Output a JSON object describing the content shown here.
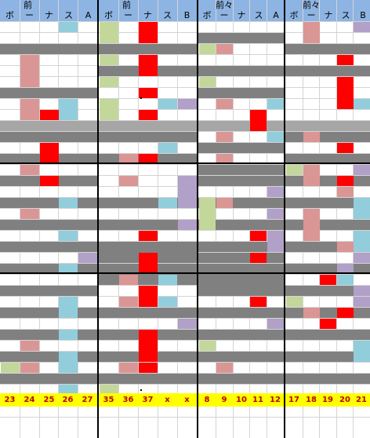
{
  "colors": {
    "header": "#8db4e2",
    "gray": "#808080",
    "light_gray": "#a6a6a6",
    "red": "#ff0000",
    "pink": "#da9694",
    "teal": "#92cddc",
    "green": "#c4d79b",
    "purple": "#b1a0c7",
    "footer": "#ffff00",
    "footer_text": "#c00000"
  },
  "panels": [
    {
      "header_top": "前",
      "header_labels": [
        "ボ",
        "ー",
        "ナ",
        "ス",
        "A"
      ],
      "footer_values": [
        "23",
        "24",
        "25",
        "26",
        "27"
      ]
    },
    {
      "header_top": "前",
      "header_labels": [
        "ボ",
        "ー",
        "ナ",
        "ス",
        "B"
      ],
      "footer_values": [
        "35",
        "36",
        "37",
        "x",
        "x"
      ]
    },
    {
      "header_top": "前々",
      "header_labels": [
        "ボ",
        "ー",
        "ナ",
        "ス",
        "A"
      ],
      "footer_values": [
        "8",
        "9",
        "10",
        "11",
        "12"
      ]
    },
    {
      "header_top": "前々",
      "header_labels": [
        "ボ",
        "ー",
        "ナ",
        "ス",
        "B"
      ],
      "footer_values": [
        "17",
        "18",
        "19",
        "20",
        "21"
      ]
    }
  ],
  "grid": [
    {
      "panel": 0,
      "row_bands": [
        [
          2,
          1,
          "gray"
        ],
        [
          6,
          1,
          "gray"
        ],
        [
          9,
          1,
          "light_gray"
        ],
        [
          10,
          1,
          "gray"
        ],
        [
          12,
          1,
          "gray"
        ],
        [
          14,
          1,
          "gray"
        ],
        [
          16,
          1,
          "gray"
        ],
        [
          18,
          1,
          "gray"
        ],
        [
          20,
          1,
          "gray"
        ],
        [
          22,
          1,
          "gray"
        ],
        [
          24,
          1,
          "gray"
        ],
        [
          26,
          1,
          "gray"
        ],
        [
          28,
          1,
          "gray"
        ],
        [
          30,
          1,
          "gray"
        ],
        [
          32,
          1,
          "gray"
        ]
      ],
      "cells": [
        [
          0,
          3,
          1,
          "teal"
        ],
        [
          3,
          1,
          3,
          "pink"
        ],
        [
          7,
          1,
          2,
          "pink"
        ],
        [
          7,
          3,
          2,
          "teal"
        ],
        [
          8,
          2,
          1,
          "red"
        ],
        [
          11,
          2,
          2,
          "red"
        ],
        [
          13,
          1,
          1,
          "pink"
        ],
        [
          14,
          2,
          1,
          "red"
        ],
        [
          17,
          1,
          1,
          "pink"
        ],
        [
          16,
          3,
          1,
          "teal"
        ],
        [
          19,
          3,
          1,
          "teal"
        ],
        [
          21,
          4,
          1,
          "purple"
        ],
        [
          22,
          3,
          1,
          "teal"
        ],
        [
          25,
          3,
          2,
          "teal"
        ],
        [
          28,
          3,
          1,
          "teal"
        ],
        [
          29,
          1,
          1,
          "pink"
        ],
        [
          30,
          3,
          2,
          "teal"
        ],
        [
          31,
          0,
          1,
          "green"
        ],
        [
          31,
          1,
          1,
          "pink"
        ],
        [
          33,
          3,
          1,
          "teal"
        ]
      ]
    },
    {
      "panel": 1,
      "row_bands": [
        [
          2,
          1,
          "gray"
        ],
        [
          4,
          1,
          "gray"
        ],
        [
          9,
          1,
          "light_gray"
        ],
        [
          10,
          1,
          "gray"
        ],
        [
          12,
          1,
          "gray"
        ],
        [
          16,
          1,
          "gray"
        ],
        [
          18,
          1,
          "gray"
        ],
        [
          20,
          2,
          "gray"
        ],
        [
          22,
          2,
          "gray"
        ],
        [
          26,
          1,
          "gray"
        ],
        [
          28,
          1,
          "gray"
        ],
        [
          30,
          1,
          "gray"
        ],
        [
          32,
          1,
          "gray"
        ]
      ],
      "cells": [
        [
          0,
          0,
          2,
          "green"
        ],
        [
          0,
          2,
          2,
          "red"
        ],
        [
          3,
          0,
          1,
          "green"
        ],
        [
          3,
          2,
          2,
          "red"
        ],
        [
          5,
          0,
          1,
          "green"
        ],
        [
          6,
          2,
          1,
          "red"
        ],
        [
          7,
          0,
          2,
          "green"
        ],
        [
          7,
          3,
          1,
          "teal"
        ],
        [
          7,
          4,
          1,
          "purple"
        ],
        [
          8,
          2,
          1,
          "red"
        ],
        [
          11,
          3,
          1,
          "teal"
        ],
        [
          12,
          1,
          1,
          "pink"
        ],
        [
          12,
          2,
          1,
          "red"
        ],
        [
          14,
          4,
          3,
          "purple"
        ],
        [
          14,
          1,
          1,
          "pink"
        ],
        [
          16,
          3,
          1,
          "teal"
        ],
        [
          18,
          4,
          1,
          "purple"
        ],
        [
          19,
          2,
          1,
          "red"
        ],
        [
          21,
          2,
          2,
          "red"
        ],
        [
          23,
          1,
          1,
          "pink"
        ],
        [
          23,
          3,
          1,
          "teal"
        ],
        [
          24,
          2,
          2,
          "red"
        ],
        [
          25,
          1,
          1,
          "pink"
        ],
        [
          25,
          3,
          1,
          "teal"
        ],
        [
          27,
          4,
          1,
          "purple"
        ],
        [
          28,
          2,
          3,
          "red"
        ],
        [
          31,
          1,
          1,
          "pink"
        ],
        [
          31,
          2,
          1,
          "red"
        ],
        [
          33,
          0,
          1,
          "green"
        ]
      ]
    },
    {
      "panel": 2,
      "row_bands": [
        [
          1,
          1,
          "gray"
        ],
        [
          4,
          1,
          "gray"
        ],
        [
          6,
          1,
          "gray"
        ],
        [
          9,
          1,
          "light_gray"
        ],
        [
          11,
          1,
          "gray"
        ],
        [
          13,
          1,
          "gray"
        ],
        [
          14,
          1,
          "gray"
        ],
        [
          16,
          1,
          "gray"
        ],
        [
          18,
          1,
          "gray"
        ],
        [
          20,
          1,
          "gray"
        ],
        [
          21,
          1,
          "gray"
        ],
        [
          22,
          3,
          "gray"
        ],
        [
          26,
          1,
          "gray"
        ],
        [
          28,
          1,
          "gray"
        ],
        [
          30,
          1,
          "gray"
        ],
        [
          32,
          1,
          "gray"
        ]
      ],
      "cells": [
        [
          2,
          0,
          1,
          "green"
        ],
        [
          2,
          1,
          1,
          "pink"
        ],
        [
          5,
          0,
          1,
          "green"
        ],
        [
          7,
          1,
          1,
          "pink"
        ],
        [
          7,
          4,
          1,
          "teal"
        ],
        [
          8,
          3,
          2,
          "red"
        ],
        [
          10,
          1,
          1,
          "pink"
        ],
        [
          10,
          4,
          1,
          "teal"
        ],
        [
          12,
          1,
          1,
          "pink"
        ],
        [
          15,
          4,
          1,
          "purple"
        ],
        [
          16,
          1,
          1,
          "pink"
        ],
        [
          16,
          0,
          3,
          "green"
        ],
        [
          17,
          4,
          1,
          "purple"
        ],
        [
          19,
          4,
          2,
          "purple"
        ],
        [
          19,
          3,
          1,
          "red"
        ],
        [
          21,
          3,
          1,
          "red"
        ],
        [
          25,
          3,
          1,
          "red"
        ],
        [
          27,
          4,
          1,
          "purple"
        ],
        [
          29,
          0,
          1,
          "green"
        ],
        [
          31,
          1,
          1,
          "pink"
        ]
      ]
    },
    {
      "panel": 3,
      "row_bands": [
        [
          2,
          1,
          "gray"
        ],
        [
          4,
          1,
          "gray"
        ],
        [
          9,
          1,
          "light_gray"
        ],
        [
          10,
          1,
          "gray"
        ],
        [
          12,
          1,
          "gray"
        ],
        [
          14,
          1,
          "gray"
        ],
        [
          16,
          1,
          "gray"
        ],
        [
          18,
          1,
          "gray"
        ],
        [
          20,
          1,
          "gray"
        ],
        [
          22,
          1,
          "gray"
        ],
        [
          24,
          1,
          "gray"
        ],
        [
          26,
          1,
          "gray"
        ],
        [
          28,
          1,
          "gray"
        ],
        [
          30,
          1,
          "gray"
        ],
        [
          32,
          1,
          "gray"
        ]
      ],
      "cells": [
        [
          0,
          1,
          2,
          "pink"
        ],
        [
          0,
          4,
          1,
          "purple"
        ],
        [
          3,
          3,
          1,
          "red"
        ],
        [
          5,
          3,
          3,
          "red"
        ],
        [
          7,
          4,
          1,
          "teal"
        ],
        [
          10,
          1,
          1,
          "pink"
        ],
        [
          11,
          3,
          1,
          "red"
        ],
        [
          13,
          0,
          1,
          "green"
        ],
        [
          13,
          1,
          2,
          "pink"
        ],
        [
          13,
          4,
          1,
          "purple"
        ],
        [
          14,
          3,
          1,
          "red"
        ],
        [
          15,
          3,
          1,
          "pink"
        ],
        [
          16,
          4,
          2,
          "teal"
        ],
        [
          17,
          1,
          3,
          "pink"
        ],
        [
          19,
          4,
          2,
          "teal"
        ],
        [
          20,
          3,
          1,
          "pink"
        ],
        [
          21,
          4,
          1,
          "purple"
        ],
        [
          22,
          3,
          1,
          "purple"
        ],
        [
          23,
          2,
          1,
          "red"
        ],
        [
          23,
          3,
          1,
          "teal"
        ],
        [
          24,
          4,
          1,
          "purple"
        ],
        [
          25,
          0,
          1,
          "green"
        ],
        [
          25,
          4,
          1,
          "purple"
        ],
        [
          26,
          1,
          1,
          "pink"
        ],
        [
          26,
          3,
          1,
          "red"
        ],
        [
          27,
          2,
          1,
          "red"
        ],
        [
          29,
          4,
          2,
          "teal"
        ]
      ]
    }
  ]
}
